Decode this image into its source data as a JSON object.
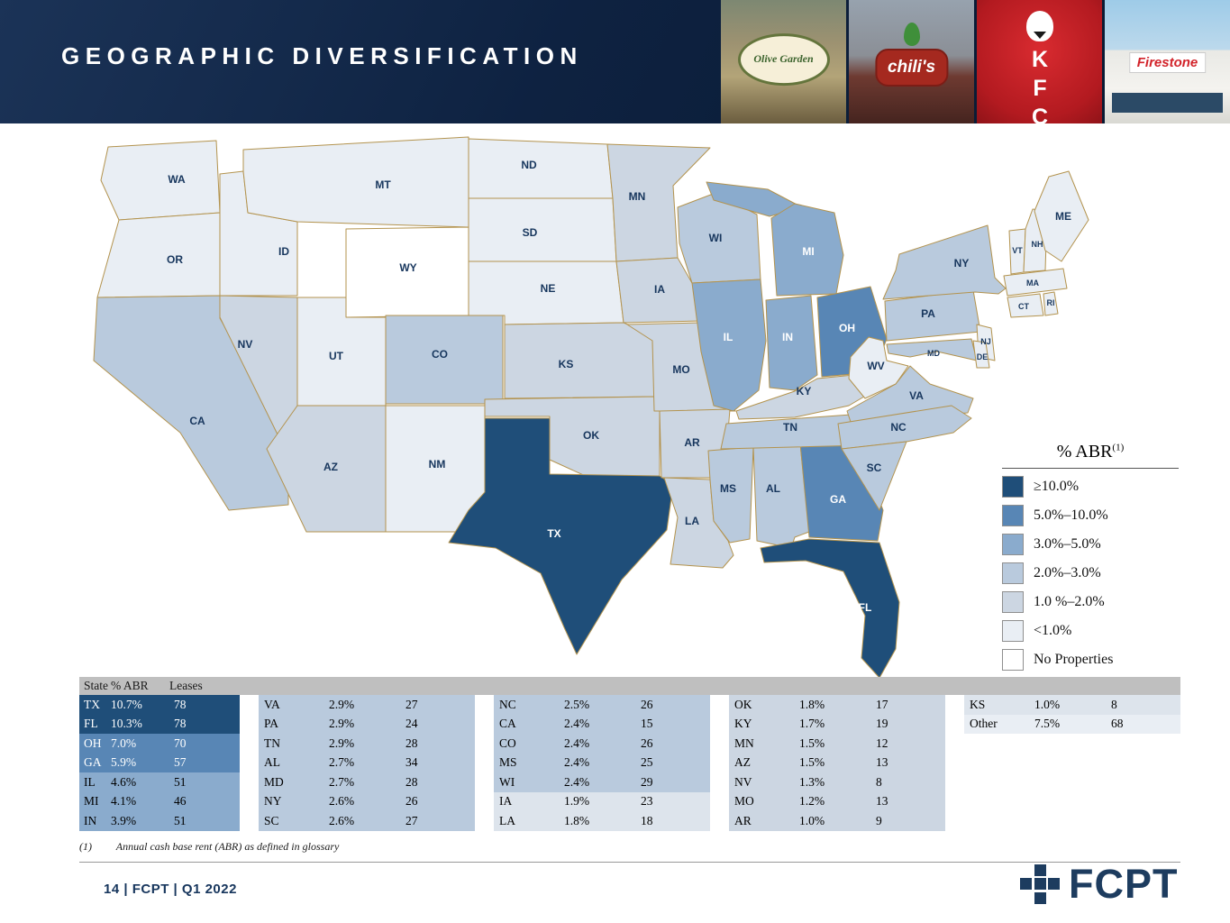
{
  "header": {
    "title": "GEOGRAPHIC DIVERSIFICATION",
    "photos": [
      {
        "name": "Olive Garden restaurant exterior",
        "sign": "Olive Garden"
      },
      {
        "name": "Chili's restaurant exterior",
        "sign": "chili's"
      },
      {
        "name": "KFC sign",
        "sign": "KFC"
      },
      {
        "name": "Firestone auto care store",
        "sign": "Firestone"
      }
    ]
  },
  "palette": {
    "t1": "#1f4e79",
    "t2": "#5886b5",
    "t3": "#8aabcd",
    "t4": "#b9cadd",
    "t5": "#ccd6e2",
    "t5l": "#dde4ec",
    "t6": "#e9eef4",
    "t7": "#ffffff",
    "border": "#b3934e",
    "label_dark": "#17365d",
    "label_light": "#ffffff"
  },
  "legend": {
    "title": "% ABR",
    "superscript": "(1)",
    "items": [
      {
        "label": "≥10.0%",
        "tier": "t1"
      },
      {
        "label": "5.0%–10.0%",
        "tier": "t2"
      },
      {
        "label": "3.0%–5.0%",
        "tier": "t3"
      },
      {
        "label": "2.0%–3.0%",
        "tier": "t4"
      },
      {
        "label": "1.0 %–2.0%",
        "tier": "t5"
      },
      {
        "label": "<1.0%",
        "tier": "t6"
      },
      {
        "label": "No Properties",
        "tier": "t7"
      }
    ]
  },
  "map": {
    "states": [
      {
        "abbr": "WA",
        "tier": "t6"
      },
      {
        "abbr": "OR",
        "tier": "t6"
      },
      {
        "abbr": "CA",
        "tier": "t4"
      },
      {
        "abbr": "NV",
        "tier": "t5"
      },
      {
        "abbr": "ID",
        "tier": "t6"
      },
      {
        "abbr": "MT",
        "tier": "t6"
      },
      {
        "abbr": "WY",
        "tier": "t7"
      },
      {
        "abbr": "UT",
        "tier": "t6"
      },
      {
        "abbr": "CO",
        "tier": "t4"
      },
      {
        "abbr": "AZ",
        "tier": "t5"
      },
      {
        "abbr": "NM",
        "tier": "t6"
      },
      {
        "abbr": "ND",
        "tier": "t6"
      },
      {
        "abbr": "SD",
        "tier": "t6"
      },
      {
        "abbr": "NE",
        "tier": "t6"
      },
      {
        "abbr": "KS",
        "tier": "t5"
      },
      {
        "abbr": "OK",
        "tier": "t5"
      },
      {
        "abbr": "TX",
        "tier": "t1",
        "light": true
      },
      {
        "abbr": "MN",
        "tier": "t5"
      },
      {
        "abbr": "IA",
        "tier": "t5"
      },
      {
        "abbr": "MO",
        "tier": "t5"
      },
      {
        "abbr": "AR",
        "tier": "t5"
      },
      {
        "abbr": "LA",
        "tier": "t5"
      },
      {
        "abbr": "MS",
        "tier": "t4"
      },
      {
        "abbr": "AL",
        "tier": "t4"
      },
      {
        "abbr": "GA",
        "tier": "t2",
        "light": true
      },
      {
        "abbr": "FL",
        "tier": "t1",
        "light": true
      },
      {
        "abbr": "WI",
        "tier": "t4"
      },
      {
        "abbr": "IL",
        "tier": "t3",
        "light": true
      },
      {
        "abbr": "IN",
        "tier": "t3",
        "light": true
      },
      {
        "abbr": "MI",
        "tier": "t3",
        "light": true
      },
      {
        "abbr": "OH",
        "tier": "t2",
        "light": true
      },
      {
        "abbr": "KY",
        "tier": "t5"
      },
      {
        "abbr": "TN",
        "tier": "t4"
      },
      {
        "abbr": "VA",
        "tier": "t4"
      },
      {
        "abbr": "WV",
        "tier": "t6"
      },
      {
        "abbr": "NC",
        "tier": "t4"
      },
      {
        "abbr": "SC",
        "tier": "t4"
      },
      {
        "abbr": "PA",
        "tier": "t4"
      },
      {
        "abbr": "NY",
        "tier": "t4"
      },
      {
        "abbr": "NJ",
        "tier": "t6"
      },
      {
        "abbr": "MD",
        "tier": "t4"
      },
      {
        "abbr": "DE",
        "tier": "t6"
      },
      {
        "abbr": "CT",
        "tier": "t6"
      },
      {
        "abbr": "RI",
        "tier": "t6"
      },
      {
        "abbr": "MA",
        "tier": "t6"
      },
      {
        "abbr": "VT",
        "tier": "t6"
      },
      {
        "abbr": "NH",
        "tier": "t6"
      },
      {
        "abbr": "ME",
        "tier": "t6"
      }
    ]
  },
  "table": {
    "columns": [
      "State",
      "% ABR",
      "Leases"
    ],
    "groups": [
      {
        "rows": [
          {
            "state": "TX",
            "abr": "10.7%",
            "leases": "78",
            "tier": "t1",
            "light": true
          },
          {
            "state": "FL",
            "abr": "10.3%",
            "leases": "78",
            "tier": "t1",
            "light": true
          },
          {
            "state": "OH",
            "abr": "7.0%",
            "leases": "70",
            "tier": "t2",
            "light": true
          },
          {
            "state": "GA",
            "abr": "5.9%",
            "leases": "57",
            "tier": "t2",
            "light": true
          },
          {
            "state": "IL",
            "abr": "4.6%",
            "leases": "51",
            "tier": "t3"
          },
          {
            "state": "MI",
            "abr": "4.1%",
            "leases": "46",
            "tier": "t3"
          },
          {
            "state": "IN",
            "abr": "3.9%",
            "leases": "51",
            "tier": "t3"
          }
        ]
      },
      {
        "rows": [
          {
            "state": "VA",
            "abr": "2.9%",
            "leases": "27",
            "tier": "t4"
          },
          {
            "state": "PA",
            "abr": "2.9%",
            "leases": "24",
            "tier": "t4"
          },
          {
            "state": "TN",
            "abr": "2.9%",
            "leases": "28",
            "tier": "t4"
          },
          {
            "state": "AL",
            "abr": "2.7%",
            "leases": "34",
            "tier": "t4"
          },
          {
            "state": "MD",
            "abr": "2.7%",
            "leases": "28",
            "tier": "t4"
          },
          {
            "state": "NY",
            "abr": "2.6%",
            "leases": "26",
            "tier": "t4"
          },
          {
            "state": "SC",
            "abr": "2.6%",
            "leases": "27",
            "tier": "t4"
          }
        ]
      },
      {
        "rows": [
          {
            "state": "NC",
            "abr": "2.5%",
            "leases": "26",
            "tier": "t4"
          },
          {
            "state": "CA",
            "abr": "2.4%",
            "leases": "15",
            "tier": "t4"
          },
          {
            "state": "CO",
            "abr": "2.4%",
            "leases": "26",
            "tier": "t4"
          },
          {
            "state": "MS",
            "abr": "2.4%",
            "leases": "25",
            "tier": "t4"
          },
          {
            "state": "WI",
            "abr": "2.4%",
            "leases": "29",
            "tier": "t4"
          },
          {
            "state": "IA",
            "abr": "1.9%",
            "leases": "23",
            "tier": "t5l"
          },
          {
            "state": "LA",
            "abr": "1.8%",
            "leases": "18",
            "tier": "t5l"
          }
        ]
      },
      {
        "rows": [
          {
            "state": "OK",
            "abr": "1.8%",
            "leases": "17",
            "tier": "t5"
          },
          {
            "state": "KY",
            "abr": "1.7%",
            "leases": "19",
            "tier": "t5"
          },
          {
            "state": "MN",
            "abr": "1.5%",
            "leases": "12",
            "tier": "t5"
          },
          {
            "state": "AZ",
            "abr": "1.5%",
            "leases": "13",
            "tier": "t5"
          },
          {
            "state": "NV",
            "abr": "1.3%",
            "leases": "8",
            "tier": "t5"
          },
          {
            "state": "MO",
            "abr": "1.2%",
            "leases": "13",
            "tier": "t5"
          },
          {
            "state": "AR",
            "abr": "1.0%",
            "leases": "9",
            "tier": "t5"
          }
        ]
      },
      {
        "rows": [
          {
            "state": "KS",
            "abr": "1.0%",
            "leases": "8",
            "tier": "t5l"
          },
          {
            "state": "Other",
            "abr": "7.5%",
            "leases": "68",
            "tier": "t6"
          }
        ]
      }
    ],
    "footnote_marker": "(1)",
    "footnote_text": "Annual cash base rent (ABR) as defined in glossary"
  },
  "footer": {
    "page_info": "14 | FCPT | Q1 2022",
    "logo_text": "FCPT"
  },
  "chart_data": {
    "type": "heatmap",
    "subtype": "us-state-choropleth",
    "title": "Geographic Diversification",
    "value_label": "% ABR",
    "legend_position": "right",
    "bins": [
      {
        "label": "≥10.0%",
        "color": "#1f4e79"
      },
      {
        "label": "5.0%–10.0%",
        "color": "#5886b5"
      },
      {
        "label": "3.0%–5.0%",
        "color": "#8aabcd"
      },
      {
        "label": "2.0%–3.0%",
        "color": "#b9cadd"
      },
      {
        "label": "1.0%–2.0%",
        "color": "#ccd6e2"
      },
      {
        "label": "<1.0%",
        "color": "#e9eef4"
      },
      {
        "label": "No Properties",
        "color": "#ffffff"
      }
    ],
    "states": [
      {
        "state": "TX",
        "abr_pct": 10.7,
        "leases": 78
      },
      {
        "state": "FL",
        "abr_pct": 10.3,
        "leases": 78
      },
      {
        "state": "OH",
        "abr_pct": 7.0,
        "leases": 70
      },
      {
        "state": "GA",
        "abr_pct": 5.9,
        "leases": 57
      },
      {
        "state": "IL",
        "abr_pct": 4.6,
        "leases": 51
      },
      {
        "state": "MI",
        "abr_pct": 4.1,
        "leases": 46
      },
      {
        "state": "IN",
        "abr_pct": 3.9,
        "leases": 51
      },
      {
        "state": "VA",
        "abr_pct": 2.9,
        "leases": 27
      },
      {
        "state": "PA",
        "abr_pct": 2.9,
        "leases": 24
      },
      {
        "state": "TN",
        "abr_pct": 2.9,
        "leases": 28
      },
      {
        "state": "AL",
        "abr_pct": 2.7,
        "leases": 34
      },
      {
        "state": "MD",
        "abr_pct": 2.7,
        "leases": 28
      },
      {
        "state": "NY",
        "abr_pct": 2.6,
        "leases": 26
      },
      {
        "state": "SC",
        "abr_pct": 2.6,
        "leases": 27
      },
      {
        "state": "NC",
        "abr_pct": 2.5,
        "leases": 26
      },
      {
        "state": "CA",
        "abr_pct": 2.4,
        "leases": 15
      },
      {
        "state": "CO",
        "abr_pct": 2.4,
        "leases": 26
      },
      {
        "state": "MS",
        "abr_pct": 2.4,
        "leases": 25
      },
      {
        "state": "WI",
        "abr_pct": 2.4,
        "leases": 29
      },
      {
        "state": "IA",
        "abr_pct": 1.9,
        "leases": 23
      },
      {
        "state": "LA",
        "abr_pct": 1.8,
        "leases": 18
      },
      {
        "state": "OK",
        "abr_pct": 1.8,
        "leases": 17
      },
      {
        "state": "KY",
        "abr_pct": 1.7,
        "leases": 19
      },
      {
        "state": "MN",
        "abr_pct": 1.5,
        "leases": 12
      },
      {
        "state": "AZ",
        "abr_pct": 1.5,
        "leases": 13
      },
      {
        "state": "NV",
        "abr_pct": 1.3,
        "leases": 8
      },
      {
        "state": "MO",
        "abr_pct": 1.2,
        "leases": 13
      },
      {
        "state": "AR",
        "abr_pct": 1.0,
        "leases": 9
      },
      {
        "state": "KS",
        "abr_pct": 1.0,
        "leases": 8
      },
      {
        "state": "Other",
        "abr_pct": 7.5,
        "leases": 68
      }
    ],
    "no_properties_states": [
      "WY"
    ]
  }
}
